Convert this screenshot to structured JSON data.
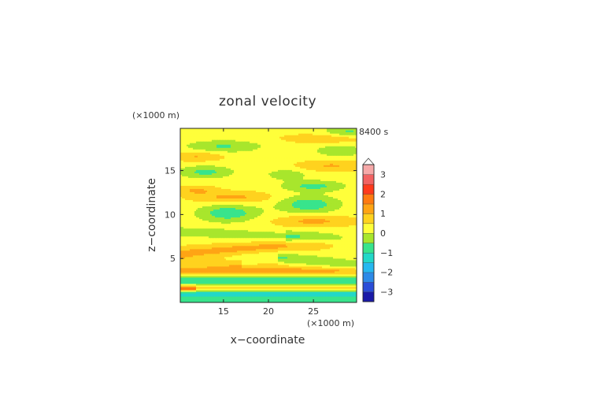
{
  "chart_data": {
    "type": "heatmap",
    "title": "zonal velocity",
    "xlabel": "x−coordinate",
    "ylabel": "z−coordinate",
    "x_unit": "(×1000 m)",
    "y_unit": "(×1000 m)",
    "time_label": "8400 s",
    "xlim": [
      10.2,
      29.8
    ],
    "ylim": [
      0,
      19.8
    ],
    "x_ticks": [
      15,
      20,
      25
    ],
    "y_ticks": [
      5,
      10,
      15
    ],
    "colorbar": {
      "levels": [
        -3.5,
        -3,
        -2.5,
        -2,
        -1.5,
        -1,
        -0.5,
        0,
        0.5,
        1,
        1.5,
        2,
        2.5,
        3,
        3.5
      ],
      "tick_labels": [
        -3,
        -2,
        -1,
        0,
        1,
        2,
        3
      ],
      "colors": [
        "#1a1aa8",
        "#2a4dd8",
        "#2d8ae8",
        "#26b8f0",
        "#22d8c8",
        "#38e48c",
        "#a8e62c",
        "#ffff3a",
        "#ffd21e",
        "#ffa414",
        "#ff7a10",
        "#ff3a1c",
        "#f26262",
        "#f6a8a8"
      ],
      "extend": "max"
    },
    "field_description": "horizontal bands of zonal velocity mostly in 0 to +1 range with negative lobes near z=1-3, 6-8, 12-14, 18-19 and strong shear near the bottom"
  }
}
